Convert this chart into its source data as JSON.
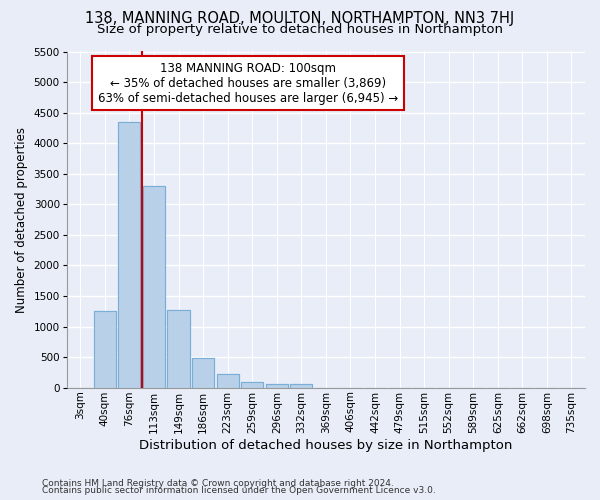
{
  "title": "138, MANNING ROAD, MOULTON, NORTHAMPTON, NN3 7HJ",
  "subtitle": "Size of property relative to detached houses in Northampton",
  "xlabel": "Distribution of detached houses by size in Northampton",
  "ylabel": "Number of detached properties",
  "footer_line1": "Contains HM Land Registry data © Crown copyright and database right 2024.",
  "footer_line2": "Contains public sector information licensed under the Open Government Licence v3.0.",
  "annotation_title": "138 MANNING ROAD: 100sqm",
  "annotation_line2": "← 35% of detached houses are smaller (3,869)",
  "annotation_line3": "63% of semi-detached houses are larger (6,945) →",
  "bar_color": "#b8d0e8",
  "bar_edge_color": "#7aaed6",
  "vline_color": "#cc0000",
  "annotation_box_edgecolor": "#cc0000",
  "categories": [
    "3sqm",
    "40sqm",
    "76sqm",
    "113sqm",
    "149sqm",
    "186sqm",
    "223sqm",
    "259sqm",
    "296sqm",
    "332sqm",
    "369sqm",
    "406sqm",
    "442sqm",
    "479sqm",
    "515sqm",
    "552sqm",
    "589sqm",
    "625sqm",
    "662sqm",
    "698sqm",
    "735sqm"
  ],
  "bar_values": [
    0,
    1260,
    4350,
    3300,
    1270,
    480,
    220,
    95,
    65,
    55,
    0,
    0,
    0,
    0,
    0,
    0,
    0,
    0,
    0,
    0,
    0
  ],
  "ylim": [
    0,
    5500
  ],
  "yticks": [
    0,
    500,
    1000,
    1500,
    2000,
    2500,
    3000,
    3500,
    4000,
    4500,
    5000,
    5500
  ],
  "bg_color": "#e8edf8",
  "grid_color": "#ffffff",
  "title_fontsize": 10.5,
  "subtitle_fontsize": 9.5,
  "ylabel_fontsize": 8.5,
  "xlabel_fontsize": 9.5,
  "tick_fontsize": 7.5,
  "footer_fontsize": 6.5,
  "annot_fontsize": 8.5
}
